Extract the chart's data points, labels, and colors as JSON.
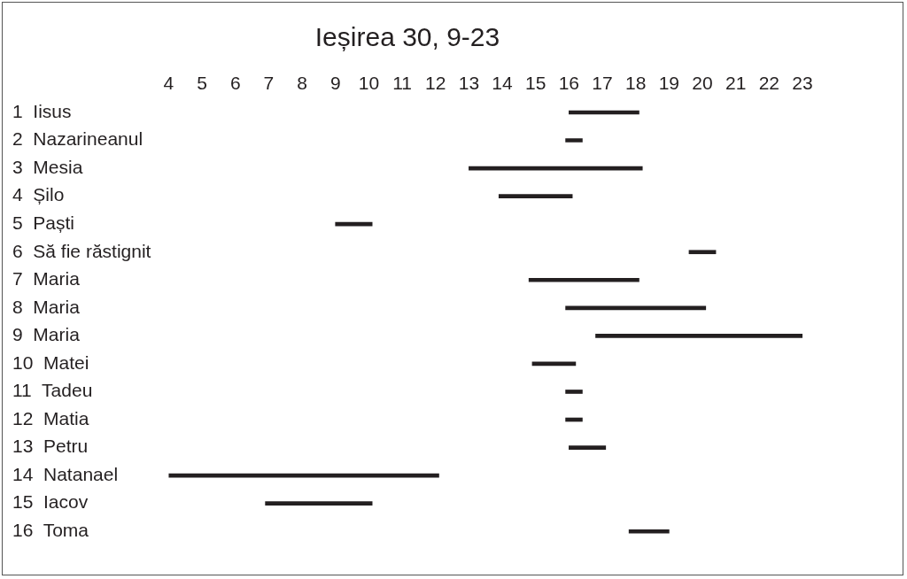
{
  "chart_data": {
    "type": "bar",
    "title": "Ieșirea 30, 9-23",
    "orientation": "horizontal",
    "categories": [
      "1  Iisus",
      "2  Nazarineanul",
      "3  Mesia",
      "4  Șilo",
      "5  Paști",
      "6  Să fie răstignit",
      "7  Maria",
      "8  Maria",
      "9  Maria",
      "10  Matei",
      "11  Tadeu",
      "12  Matia",
      "13  Petru",
      "14  Natanael",
      "15  Iacov",
      "16  Toma"
    ],
    "base": [
      16,
      15.9,
      13,
      13.9,
      9,
      19.6,
      14.8,
      15.9,
      16.8,
      14.9,
      15.9,
      15.9,
      16,
      4,
      6.9,
      17.8
    ],
    "values": [
      2.1,
      0.5,
      5.2,
      2.2,
      1.1,
      0.8,
      3.3,
      4.2,
      6.2,
      1.3,
      0.5,
      0.5,
      1.1,
      8.1,
      3.2,
      1.2
    ],
    "color": "#231f20",
    "xlim": [
      4,
      23
    ],
    "xticks": [
      4,
      5,
      6,
      7,
      8,
      9,
      10,
      11,
      12,
      13,
      14,
      15,
      16,
      17,
      18,
      19,
      20,
      21,
      22,
      23
    ]
  }
}
